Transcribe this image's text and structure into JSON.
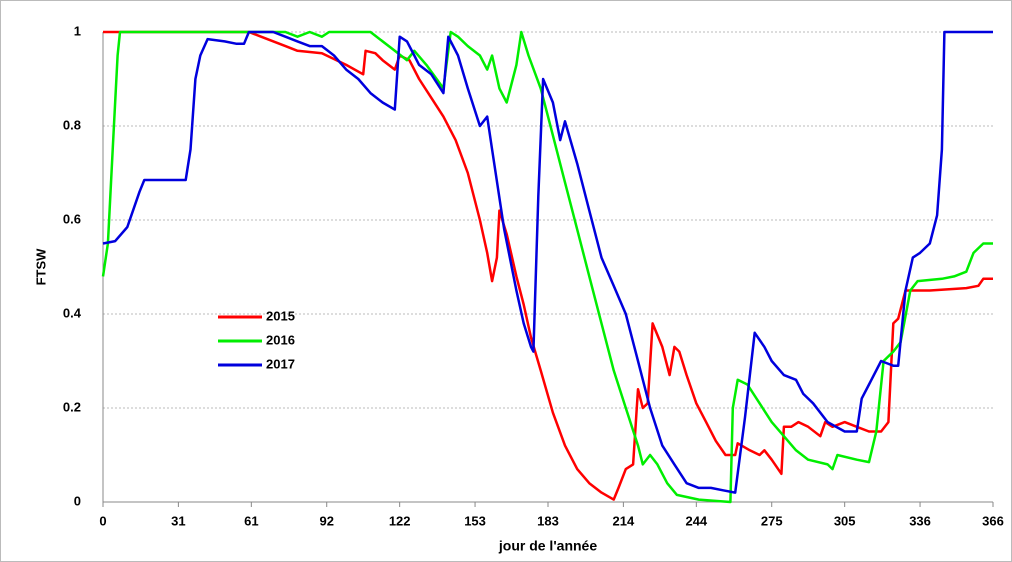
{
  "chart_data": {
    "type": "line",
    "y_label": "FTSW",
    "x_label": "jour de l'année",
    "xlim": [
      0,
      366
    ],
    "xticks": [
      0,
      31,
      61,
      92,
      122,
      153,
      183,
      214,
      244,
      275,
      305,
      336,
      366
    ],
    "ylim": [
      0,
      1
    ],
    "yticks": [
      0,
      {
        "value": 0.2,
        "label": "0.2"
      },
      {
        "value": 0.4,
        "label": "0.4"
      },
      {
        "value": 0.6,
        "label": "0.6"
      },
      {
        "value": 0.8,
        "label": "0.8"
      },
      1
    ],
    "grid": true,
    "legend": "center-left",
    "series": [
      {
        "name": "2015",
        "color": "#ff0000",
        "x": [
          0,
          60,
          65,
          75,
          80,
          90,
          100,
          107,
          108,
          112,
          115,
          120,
          122,
          126,
          130,
          135,
          140,
          145,
          150,
          155,
          158,
          160,
          162,
          163,
          166,
          170,
          173,
          176,
          180,
          185,
          190,
          195,
          200,
          205,
          210,
          212,
          215,
          218,
          220,
          222,
          224,
          226,
          230,
          233,
          235,
          237,
          240,
          244,
          248,
          252,
          256,
          260,
          261,
          266,
          270,
          272,
          275,
          279,
          280,
          283,
          286,
          290,
          295,
          297,
          300,
          305,
          310,
          315,
          320,
          323,
          325,
          327,
          330,
          340,
          355,
          360,
          362,
          366
        ],
        "values": [
          1,
          1,
          0.99,
          0.97,
          0.96,
          0.955,
          0.93,
          0.91,
          0.96,
          0.955,
          0.94,
          0.92,
          0.95,
          0.94,
          0.9,
          0.86,
          0.82,
          0.77,
          0.7,
          0.6,
          0.53,
          0.47,
          0.52,
          0.62,
          0.57,
          0.48,
          0.42,
          0.35,
          0.28,
          0.19,
          0.12,
          0.07,
          0.04,
          0.02,
          0.005,
          0.03,
          0.07,
          0.08,
          0.24,
          0.2,
          0.21,
          0.38,
          0.33,
          0.27,
          0.33,
          0.32,
          0.27,
          0.21,
          0.17,
          0.13,
          0.1,
          0.1,
          0.125,
          0.11,
          0.1,
          0.11,
          0.09,
          0.06,
          0.16,
          0.16,
          0.17,
          0.16,
          0.14,
          0.17,
          0.16,
          0.17,
          0.16,
          0.15,
          0.15,
          0.17,
          0.38,
          0.39,
          0.45,
          0.45,
          0.455,
          0.46,
          0.475,
          0.475
        ]
      },
      {
        "name": "2016",
        "color": "#00ee00",
        "x": [
          0,
          2,
          4,
          6,
          7,
          75,
          80,
          85,
          90,
          93,
          110,
          120,
          125,
          128,
          133,
          140,
          143,
          146,
          150,
          155,
          158,
          160,
          163,
          166,
          170,
          172,
          175,
          180,
          185,
          190,
          195,
          200,
          205,
          210,
          215,
          220,
          222,
          225,
          228,
          232,
          236,
          245,
          258,
          259,
          261,
          265,
          270,
          275,
          280,
          285,
          290,
          298,
          300,
          302,
          310,
          315,
          318,
          321,
          325,
          328,
          332,
          335,
          345,
          350,
          355,
          358,
          362,
          366
        ],
        "values": [
          0.48,
          0.55,
          0.75,
          0.95,
          1,
          1,
          0.99,
          1,
          0.99,
          1,
          1,
          0.96,
          0.94,
          0.96,
          0.93,
          0.88,
          1,
          0.99,
          0.97,
          0.95,
          0.92,
          0.95,
          0.88,
          0.85,
          0.93,
          1,
          0.95,
          0.88,
          0.78,
          0.68,
          0.58,
          0.48,
          0.38,
          0.28,
          0.2,
          0.12,
          0.08,
          0.1,
          0.08,
          0.04,
          0.015,
          0.005,
          0,
          0.2,
          0.26,
          0.25,
          0.21,
          0.17,
          0.14,
          0.11,
          0.09,
          0.08,
          0.07,
          0.1,
          0.09,
          0.085,
          0.15,
          0.3,
          0.32,
          0.34,
          0.45,
          0.47,
          0.475,
          0.48,
          0.49,
          0.53,
          0.55,
          0.55
        ]
      },
      {
        "name": "2017",
        "color": "#0000dd",
        "x": [
          0,
          5,
          10,
          15,
          17,
          34,
          36,
          38,
          40,
          43,
          50,
          55,
          58,
          60,
          70,
          75,
          80,
          85,
          90,
          95,
          100,
          105,
          110,
          115,
          120,
          122,
          125,
          128,
          130,
          135,
          140,
          142,
          146,
          150,
          155,
          158,
          160,
          165,
          170,
          173,
          176,
          177,
          179,
          181,
          185,
          188,
          190,
          195,
          200,
          205,
          210,
          215,
          220,
          225,
          230,
          235,
          240,
          245,
          250,
          255,
          260,
          262,
          264,
          268,
          272,
          275,
          280,
          285,
          288,
          292,
          298,
          305,
          310,
          312,
          315,
          320,
          325,
          327,
          330,
          333,
          336,
          340,
          343,
          345,
          346,
          366
        ],
        "values": [
          0.55,
          0.555,
          0.585,
          0.66,
          0.685,
          0.685,
          0.75,
          0.9,
          0.95,
          0.985,
          0.98,
          0.975,
          0.975,
          1,
          1,
          0.99,
          0.98,
          0.97,
          0.97,
          0.95,
          0.92,
          0.9,
          0.87,
          0.85,
          0.835,
          0.99,
          0.98,
          0.95,
          0.93,
          0.91,
          0.87,
          0.99,
          0.95,
          0.88,
          0.8,
          0.82,
          0.75,
          0.58,
          0.45,
          0.38,
          0.33,
          0.32,
          0.65,
          0.9,
          0.85,
          0.77,
          0.81,
          0.72,
          0.62,
          0.52,
          0.46,
          0.4,
          0.3,
          0.2,
          0.12,
          0.08,
          0.04,
          0.03,
          0.03,
          0.025,
          0.02,
          0.1,
          0.18,
          0.36,
          0.33,
          0.3,
          0.27,
          0.26,
          0.23,
          0.21,
          0.17,
          0.15,
          0.15,
          0.22,
          0.25,
          0.3,
          0.29,
          0.29,
          0.45,
          0.52,
          0.53,
          0.55,
          0.61,
          0.75,
          1,
          1
        ]
      }
    ]
  }
}
